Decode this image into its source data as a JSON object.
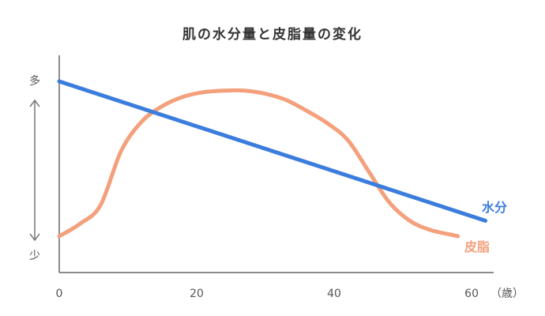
{
  "chart_data": {
    "type": "line",
    "title": "肌の水分量と皮脂量の変化",
    "xlabel": "（歳）",
    "ylabel_top": "多",
    "ylabel_bottom": "少",
    "xlim": [
      0,
      62
    ],
    "ylim": [
      0,
      100
    ],
    "x_ticks": [
      0,
      20,
      40,
      60
    ],
    "x_tick_labels": [
      "0",
      "20",
      "40",
      "60"
    ],
    "grid": false,
    "series": [
      {
        "name": "水分",
        "color": "#3b7ddd",
        "x": [
          0,
          62
        ],
        "y": [
          100,
          10
        ]
      },
      {
        "name": "皮脂",
        "color": "#f4a07c",
        "x": [
          0,
          3,
          6,
          9,
          12,
          15,
          18,
          21,
          24,
          27,
          30,
          33,
          36,
          39,
          42,
          45,
          48,
          51,
          54,
          57,
          58
        ],
        "y": [
          0,
          8,
          20,
          55,
          74,
          84,
          90,
          93,
          94,
          94,
          92,
          88,
          81,
          73,
          62,
          42,
          22,
          10,
          4,
          1,
          0
        ]
      }
    ]
  }
}
